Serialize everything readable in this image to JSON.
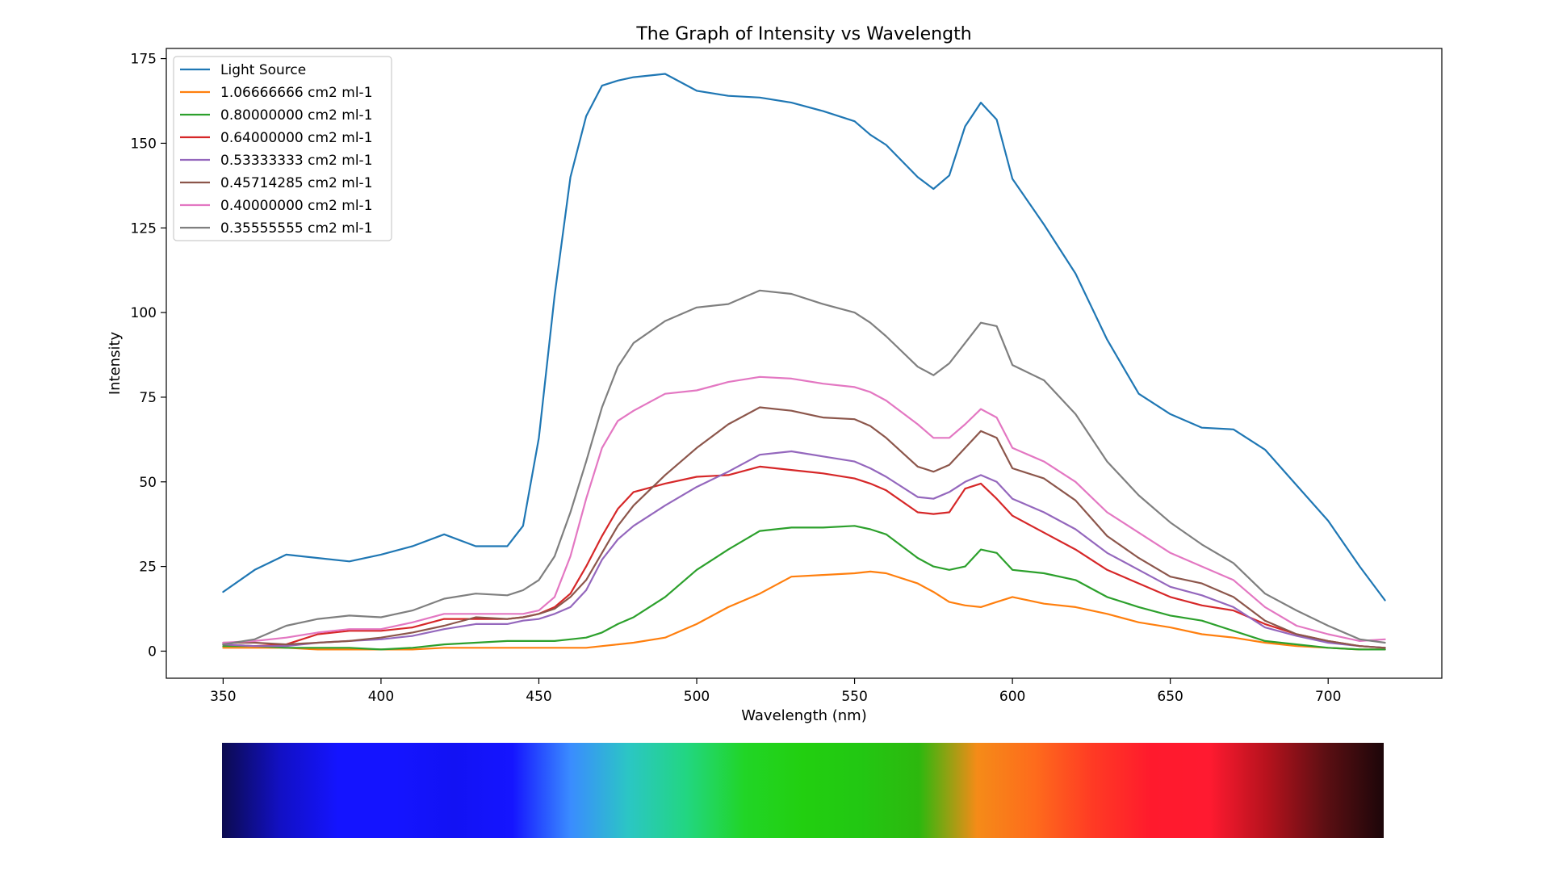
{
  "chart_data": {
    "type": "line",
    "title": "The Graph of Intensity vs Wavelength",
    "xlabel": "Wavelength (nm)",
    "ylabel": "Intensity",
    "xlim": [
      332,
      736
    ],
    "ylim": [
      -8,
      178
    ],
    "xticks": [
      350,
      400,
      450,
      500,
      550,
      600,
      650,
      700
    ],
    "yticks": [
      0,
      25,
      50,
      75,
      100,
      125,
      150,
      175
    ],
    "grid": false,
    "legend_position": "top-left",
    "x": [
      350,
      360,
      370,
      380,
      390,
      400,
      410,
      420,
      430,
      440,
      445,
      450,
      455,
      460,
      465,
      470,
      475,
      480,
      490,
      500,
      510,
      520,
      530,
      540,
      550,
      555,
      560,
      570,
      575,
      580,
      585,
      590,
      595,
      600,
      610,
      620,
      630,
      640,
      650,
      660,
      670,
      680,
      690,
      700,
      710,
      718
    ],
    "series": [
      {
        "name": "Light Source",
        "color": "#1f77b4",
        "values": [
          17.5,
          24,
          28.5,
          27.5,
          26.5,
          28.5,
          31,
          34.5,
          31,
          31,
          37,
          63,
          105,
          140,
          158,
          167,
          168.5,
          169.5,
          170.5,
          165.5,
          164,
          163.5,
          162,
          159.5,
          156.5,
          152.5,
          149.5,
          140,
          136.5,
          140.5,
          155,
          162,
          157,
          139.5,
          126,
          111.5,
          92,
          76,
          70,
          66,
          65.5,
          59.5,
          49,
          38.5,
          25,
          15
        ]
      },
      {
        "name": "1.06666666 cm2 ml-1",
        "color": "#ff7f0e",
        "values": [
          1,
          1,
          1,
          0.5,
          0.5,
          0.5,
          0.5,
          1,
          1,
          1,
          1,
          1,
          1,
          1,
          1,
          1.5,
          2,
          2.5,
          4,
          8,
          13,
          17,
          22,
          22.5,
          23,
          23.5,
          23,
          20,
          17.5,
          14.5,
          13.5,
          13,
          14.5,
          16,
          14,
          13,
          11,
          8.5,
          7,
          5,
          4,
          2.5,
          1.5,
          1,
          0.5,
          0.5
        ]
      },
      {
        "name": "0.80000000 cm2 ml-1",
        "color": "#2ca02c",
        "values": [
          1.5,
          1.5,
          1,
          1,
          1,
          0.5,
          1,
          2,
          2.5,
          3,
          3,
          3,
          3,
          3.5,
          4,
          5.5,
          8,
          10,
          16,
          24,
          30,
          35.5,
          36.5,
          36.5,
          37,
          36,
          34.5,
          27.5,
          25,
          24,
          25,
          30,
          29,
          24,
          23,
          21,
          16,
          13,
          10.5,
          9,
          6,
          3,
          2,
          1,
          0.5,
          0.5
        ]
      },
      {
        "name": "0.64000000 cm2 ml-1",
        "color": "#d62728",
        "values": [
          2,
          1.5,
          2,
          5,
          6,
          6,
          7,
          9.5,
          9.5,
          9.5,
          10,
          11,
          13,
          17,
          25,
          34,
          42,
          47,
          49.5,
          51.5,
          52,
          54.5,
          53.5,
          52.5,
          51,
          49.5,
          47.5,
          41,
          40.5,
          41,
          48,
          49.5,
          45,
          40,
          35,
          30,
          24,
          20,
          16,
          13.5,
          12,
          8,
          5,
          3,
          1.5,
          1
        ]
      },
      {
        "name": "0.53333333 cm2 ml-1",
        "color": "#9467bd",
        "values": [
          2,
          1.5,
          1.5,
          2.5,
          3,
          3.5,
          4.5,
          6.5,
          8,
          8,
          9,
          9.5,
          11,
          13,
          18,
          27,
          33,
          37,
          43,
          48.5,
          53,
          58,
          59,
          57.5,
          56,
          54,
          51.5,
          45.5,
          45,
          47,
          50,
          52,
          50,
          45,
          41,
          36,
          29,
          24,
          19,
          16.5,
          13,
          7,
          4.5,
          2.5,
          1.5,
          1
        ]
      },
      {
        "name": "0.45714285 cm2 ml-1",
        "color": "#8c564b",
        "values": [
          2.5,
          2.5,
          2,
          2.5,
          3,
          4,
          5.5,
          7.5,
          10,
          9.5,
          10,
          11,
          12.5,
          16,
          21,
          29,
          37,
          43,
          52,
          60,
          67,
          72,
          71,
          69,
          68.5,
          66.5,
          63,
          54.5,
          53,
          55,
          60,
          65,
          63,
          54,
          51,
          44.5,
          34,
          27.5,
          22,
          20,
          16,
          9,
          5,
          3,
          1.5,
          1
        ]
      },
      {
        "name": "0.40000000 cm2 ml-1",
        "color": "#e377c2",
        "values": [
          2.5,
          3,
          4,
          5.5,
          6.5,
          6.5,
          8.5,
          11,
          11,
          11,
          11,
          12,
          16,
          28,
          45,
          60,
          68,
          71,
          76,
          77,
          79.5,
          81,
          80.5,
          79,
          78,
          76.5,
          74,
          67,
          63,
          63,
          67,
          71.5,
          69,
          60,
          56,
          50,
          41,
          35,
          29,
          25,
          21,
          13,
          7.5,
          5,
          3,
          3.5
        ]
      },
      {
        "name": "0.35555555 cm2 ml-1",
        "color": "#7f7f7f",
        "values": [
          2,
          3.5,
          7.5,
          9.5,
          10.5,
          10,
          12,
          15.5,
          17,
          16.5,
          18,
          21,
          28,
          41,
          56,
          72,
          84,
          91,
          97.5,
          101.5,
          102.5,
          106.5,
          105.5,
          102.5,
          100,
          97,
          93,
          84,
          81.5,
          85,
          91,
          97,
          96,
          84.5,
          80,
          70,
          56,
          46,
          38,
          31.5,
          26,
          17,
          12,
          7.5,
          3.5,
          2.5
        ]
      }
    ]
  },
  "spectrum_bar": {
    "colors": [
      "#0c0b4f",
      "#1210c4",
      "#1414ff",
      "#1414ff",
      "#1212f4",
      "#1515ff",
      "#3a8cff",
      "#2bc6c4",
      "#22d681",
      "#21d526",
      "#22cf10",
      "#22c712",
      "#2db80e",
      "#f58b18",
      "#fe6b1c",
      "#ff3a24",
      "#ff1a2d",
      "#ff1a30",
      "#b5121d",
      "#5c0f13",
      "#1c0609"
    ]
  }
}
